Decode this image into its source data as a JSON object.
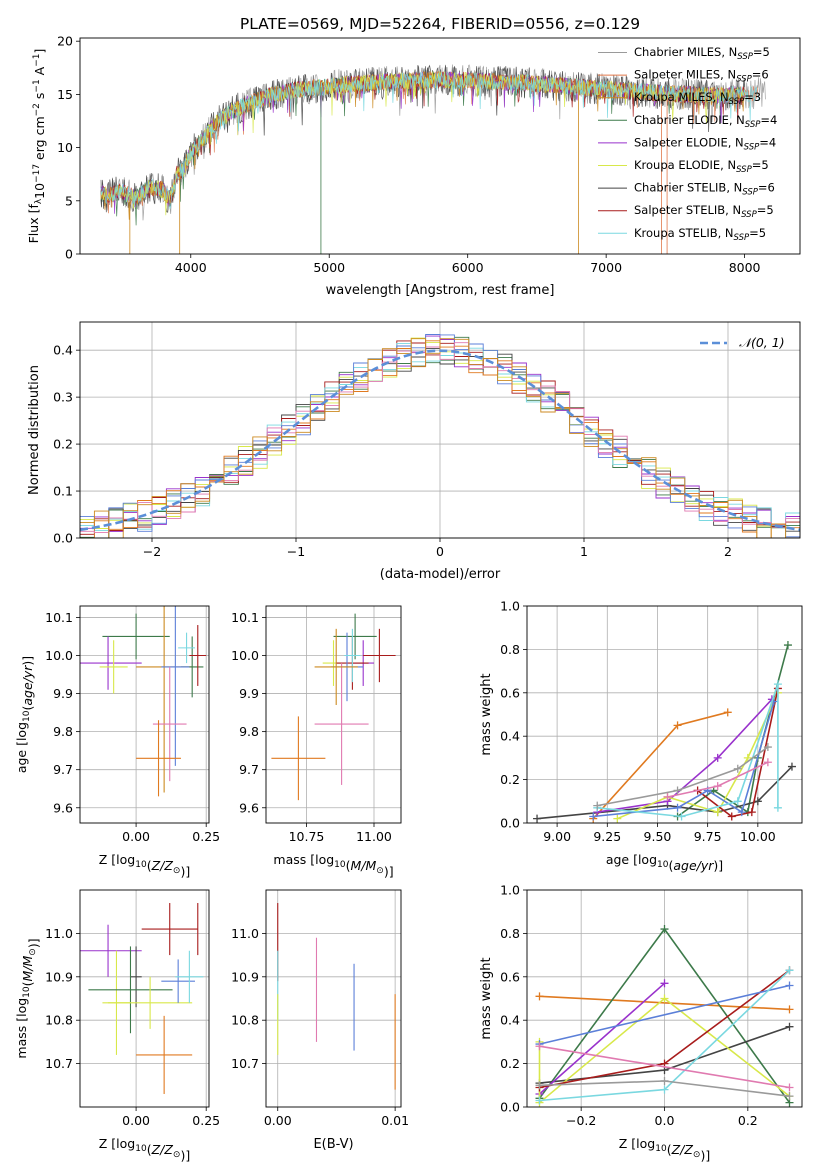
{
  "page": {
    "title": "PLATE=0569, MJD=52264, FIBERID=0556, z=0.129"
  },
  "colors": {
    "Chabrier MILES": "#9a9a9a",
    "Salpeter MILES": "#e0784a",
    "Kroupa MILES": "#cc8a20",
    "Chabrier ELODIE": "#3d7a4a",
    "Salpeter ELODIE": "#9932cc",
    "Kroupa ELODIE": "#d8e84a",
    "Chabrier STELIB": "#444444",
    "Salpeter STELIB": "#a81c1c",
    "Kroupa STELIB": "#7ad8e0",
    "extra_blue": "#5b7fd8",
    "extra_pink": "#e07ab0",
    "extra_orange": "#e07a20"
  },
  "chart_data": [
    {
      "id": "spectrum",
      "type": "line",
      "xlabel": "wavelength [Angstrom, rest frame]",
      "ylabel_parts": [
        "Flux [f",
        "λ",
        "10",
        "−17",
        " erg cm",
        "−2",
        " s",
        "−1",
        " A",
        "−1",
        "]"
      ],
      "xlim": [
        3200,
        8400
      ],
      "ylim": [
        0,
        20.3
      ],
      "xticks": [
        4000,
        5000,
        6000,
        7000,
        8000
      ],
      "yticks": [
        0,
        5,
        10,
        15,
        20
      ],
      "grid": false,
      "legend": "right",
      "shape_x": [
        3350,
        3400,
        3500,
        3600,
        3700,
        3800,
        3850,
        3900,
        3950,
        4000,
        4100,
        4200,
        4300,
        4400,
        4500,
        4600,
        4700,
        4800,
        4900,
        5000,
        5200,
        5400,
        5600,
        5800,
        6000,
        6200,
        6400,
        6600,
        6800,
        7000,
        7200,
        7400,
        7600,
        7800,
        8000,
        8150
      ],
      "shape_y": [
        5.8,
        5.5,
        6.0,
        5.2,
        6.3,
        6.0,
        5.0,
        7.5,
        8.0,
        9.5,
        11.0,
        12.5,
        13.5,
        14.0,
        14.5,
        15.0,
        15.3,
        15.5,
        15.6,
        15.8,
        16.0,
        16.2,
        16.3,
        16.4,
        16.3,
        16.2,
        16.1,
        15.9,
        15.7,
        15.5,
        15.3,
        15.1,
        15.0,
        14.9,
        15.0,
        15.2
      ],
      "series": [
        {
          "label": "Chabrier MILES, N",
          "sub": "SSP",
          "val": "=5"
        },
        {
          "label": "Salpeter MILES, N",
          "sub": "SSP",
          "val": "=6"
        },
        {
          "label": "Kroupa MILES, N",
          "sub": "SSP",
          "val": "=3"
        },
        {
          "label": "Chabrier ELODIE, N",
          "sub": "SSP",
          "val": "=4"
        },
        {
          "label": "Salpeter ELODIE, N",
          "sub": "SSP",
          "val": "=4"
        },
        {
          "label": "Kroupa ELODIE, N",
          "sub": "SSP",
          "val": "=5"
        },
        {
          "label": "Chabrier STELIB, N",
          "sub": "SSP",
          "val": "=6"
        },
        {
          "label": "Salpeter STELIB, N",
          "sub": "SSP",
          "val": "=5"
        },
        {
          "label": "Kroupa STELIB, N",
          "sub": "SSP",
          "val": "=5"
        }
      ]
    },
    {
      "id": "residuals",
      "type": "line",
      "xlabel": "(data-model)/error",
      "ylabel": "Normed distribution",
      "xlim": [
        -2.5,
        2.5
      ],
      "ylim": [
        0,
        0.46
      ],
      "xticks": [
        -2,
        -1,
        0,
        1,
        2
      ],
      "yticks": [
        0.0,
        0.1,
        0.2,
        0.3,
        0.4
      ],
      "grid": true,
      "legend": "top-right",
      "legend_label": "𝒩(0, 1)",
      "bin_width": 0.1
    },
    {
      "id": "ageZ",
      "type": "scatter",
      "xlabel": "Z [log10(Z/Z⊙)]",
      "ylabel": "age  [log10(age/yr)]",
      "xlim": [
        -0.2,
        0.26
      ],
      "ylim": [
        9.56,
        10.13
      ],
      "xticks": [
        0.0,
        0.25
      ],
      "yticks": [
        9.6,
        9.7,
        9.8,
        9.9,
        10.0,
        10.1
      ],
      "grid": true,
      "points": [
        {
          "x": 0.0,
          "y": 10.05,
          "ex": 0.12,
          "ey": 0.06,
          "c": "#3d7a4a"
        },
        {
          "x": -0.1,
          "y": 9.98,
          "ex": 0.12,
          "ey": 0.07,
          "c": "#9932cc"
        },
        {
          "x": -0.08,
          "y": 9.97,
          "ex": 0.05,
          "ey": 0.07,
          "c": "#d8e84a"
        },
        {
          "x": 0.1,
          "y": 9.97,
          "ex": 0.1,
          "ey": 0.33,
          "c": "#cc8a20"
        },
        {
          "x": 0.2,
          "y": 9.97,
          "ex": 0.04,
          "ey": 0.08,
          "c": "#3d7a4a"
        },
        {
          "x": 0.22,
          "y": 10.0,
          "ex": 0.03,
          "ey": 0.08,
          "c": "#a81c1c"
        },
        {
          "x": 0.14,
          "y": 9.97,
          "ex": 0.05,
          "ey": 0.26,
          "c": "#5b7fd8"
        },
        {
          "x": 0.18,
          "y": 10.02,
          "ex": 0.03,
          "ey": 0.04,
          "c": "#7ad8e0"
        },
        {
          "x": 0.12,
          "y": 9.82,
          "ex": 0.06,
          "ey": 0.15,
          "c": "#e07ab0"
        },
        {
          "x": 0.08,
          "y": 9.73,
          "ex": 0.08,
          "ey": 0.1,
          "c": "#e07a20"
        }
      ]
    },
    {
      "id": "ageMass",
      "type": "scatter",
      "xlabel": "mass [log10(M/M⊙)]",
      "xlim": [
        10.6,
        11.1
      ],
      "ylim": [
        9.56,
        10.13
      ],
      "xticks": [
        10.75,
        11.0
      ],
      "yticks": [
        9.6,
        9.7,
        9.8,
        9.9,
        10.0,
        10.1
      ],
      "grid": true,
      "points": [
        {
          "x": 10.93,
          "y": 10.05,
          "ex": 0.08,
          "ey": 0.06,
          "c": "#3d7a4a"
        },
        {
          "x": 10.96,
          "y": 9.98,
          "ex": 0.04,
          "ey": 0.06,
          "c": "#9932cc"
        },
        {
          "x": 10.85,
          "y": 9.98,
          "ex": 0.04,
          "ey": 0.06,
          "c": "#d8e84a"
        },
        {
          "x": 10.72,
          "y": 9.73,
          "ex": 0.1,
          "ey": 0.11,
          "c": "#e07a20"
        },
        {
          "x": 10.92,
          "y": 9.98,
          "ex": 0.06,
          "ey": 0.07,
          "c": "#a81c1c"
        },
        {
          "x": 11.02,
          "y": 10.0,
          "ex": 0.06,
          "ey": 0.07,
          "c": "#a81c1c"
        },
        {
          "x": 10.9,
          "y": 9.97,
          "ex": 0.06,
          "ey": 0.09,
          "c": "#5b7fd8"
        },
        {
          "x": 10.92,
          "y": 10.0,
          "ex": 0.03,
          "ey": 0.07,
          "c": "#7ad8e0"
        },
        {
          "x": 10.88,
          "y": 9.82,
          "ex": 0.1,
          "ey": 0.16,
          "c": "#e07ab0"
        },
        {
          "x": 10.86,
          "y": 9.97,
          "ex": 0.08,
          "ey": 0.1,
          "c": "#cc8a20"
        }
      ]
    },
    {
      "id": "massWeightAge",
      "type": "line",
      "xlabel": "age  [log10(age/yr)]",
      "ylabel": "mass weight",
      "xlim": [
        8.85,
        10.22
      ],
      "ylim": [
        0,
        1.0
      ],
      "xticks": [
        9.0,
        9.25,
        9.5,
        9.75,
        10.0
      ],
      "yticks": [
        0.0,
        0.2,
        0.4,
        0.6,
        0.8,
        1.0
      ],
      "grid": true,
      "lines": [
        {
          "c": "#e07a20",
          "pts": [
            [
              9.18,
              0.02
            ],
            [
              9.6,
              0.45
            ],
            [
              9.85,
              0.51
            ]
          ]
        },
        {
          "c": "#3d7a4a",
          "pts": [
            [
              9.6,
              0.03
            ],
            [
              9.78,
              0.15
            ],
            [
              9.95,
              0.05
            ],
            [
              10.0,
              0.3
            ],
            [
              10.15,
              0.82
            ]
          ]
        },
        {
          "c": "#444444",
          "pts": [
            [
              8.9,
              0.02
            ],
            [
              9.55,
              0.08
            ],
            [
              9.8,
              0.05
            ],
            [
              10.0,
              0.1
            ],
            [
              10.17,
              0.26
            ]
          ]
        },
        {
          "c": "#9932cc",
          "pts": [
            [
              9.2,
              0.05
            ],
            [
              9.55,
              0.1
            ],
            [
              9.8,
              0.3
            ],
            [
              10.07,
              0.57
            ]
          ]
        },
        {
          "c": "#d8e84a",
          "pts": [
            [
              9.3,
              0.02
            ],
            [
              9.55,
              0.12
            ],
            [
              9.8,
              0.05
            ],
            [
              9.95,
              0.3
            ],
            [
              10.1,
              0.6
            ]
          ]
        },
        {
          "c": "#a81c1c",
          "pts": [
            [
              9.7,
              0.15
            ],
            [
              9.87,
              0.03
            ],
            [
              9.97,
              0.05
            ],
            [
              10.1,
              0.62
            ]
          ]
        },
        {
          "c": "#5b7fd8",
          "pts": [
            [
              9.18,
              0.03
            ],
            [
              9.6,
              0.07
            ],
            [
              9.75,
              0.15
            ],
            [
              9.92,
              0.05
            ],
            [
              10.08,
              0.56
            ]
          ]
        },
        {
          "c": "#7ad8e0",
          "pts": [
            [
              9.2,
              0.07
            ],
            [
              9.62,
              0.03
            ],
            [
              9.9,
              0.1
            ],
            [
              10.1,
              0.64
            ],
            [
              10.1,
              0.07
            ]
          ]
        },
        {
          "c": "#e07ab0",
          "pts": [
            [
              9.55,
              0.12
            ],
            [
              9.8,
              0.17
            ],
            [
              10.05,
              0.28
            ]
          ]
        },
        {
          "c": "#9a9a9a",
          "pts": [
            [
              9.2,
              0.08
            ],
            [
              9.6,
              0.15
            ],
            [
              9.9,
              0.25
            ],
            [
              10.05,
              0.35
            ]
          ]
        }
      ]
    },
    {
      "id": "massZ",
      "type": "scatter",
      "xlabel": "Z [log10(Z/Z⊙)]",
      "ylabel": "mass [log10(M/M⊙)]",
      "xlim": [
        -0.2,
        0.26
      ],
      "ylim": [
        10.6,
        11.1
      ],
      "xticks": [
        0.0,
        0.25
      ],
      "yticks": [
        10.7,
        10.8,
        10.9,
        11.0
      ],
      "grid": true,
      "points": [
        {
          "x": 0.12,
          "y": 11.01,
          "ex": 0.1,
          "ey": 0.06,
          "c": "#a81c1c"
        },
        {
          "x": -0.1,
          "y": 10.96,
          "ex": 0.12,
          "ey": 0.06,
          "c": "#9932cc"
        },
        {
          "x": -0.07,
          "y": 10.84,
          "ex": 0.05,
          "ey": 0.12,
          "c": "#d8e84a"
        },
        {
          "x": 0.0,
          "y": 10.9,
          "ex": 0.02,
          "ey": 0.07,
          "c": "#444444"
        },
        {
          "x": -0.02,
          "y": 10.87,
          "ex": 0.15,
          "ey": 0.1,
          "c": "#3d7a4a"
        },
        {
          "x": 0.05,
          "y": 10.84,
          "ex": 0.15,
          "ey": 0.06,
          "c": "#d8e84a"
        },
        {
          "x": 0.15,
          "y": 10.89,
          "ex": 0.06,
          "ey": 0.05,
          "c": "#5b7fd8"
        },
        {
          "x": 0.19,
          "y": 10.9,
          "ex": 0.05,
          "ey": 0.06,
          "c": "#7ad8e0"
        },
        {
          "x": 0.1,
          "y": 10.72,
          "ex": 0.1,
          "ey": 0.09,
          "c": "#e07a20"
        },
        {
          "x": 0.22,
          "y": 11.01,
          "ex": 0.0,
          "ey": 0.06,
          "c": "#a81c1c"
        }
      ]
    },
    {
      "id": "massEBV",
      "type": "scatter",
      "xlabel": "E(B-V)",
      "xlim": [
        -0.001,
        0.0105
      ],
      "ylim": [
        10.6,
        11.1
      ],
      "xticks": [
        0.0,
        0.01
      ],
      "xticklabels": [
        "0.00",
        "0.01"
      ],
      "yticks": [
        10.7,
        10.8,
        10.9,
        11.0
      ],
      "grid": true,
      "points": [
        {
          "x": 0.0,
          "y": 10.98,
          "ex": 0,
          "ey": 0.09,
          "c": "#a81c1c"
        },
        {
          "x": 0.0,
          "y": 10.88,
          "ex": 0,
          "ey": 0.08,
          "c": "#7ad8e0"
        },
        {
          "x": 0.0,
          "y": 10.79,
          "ex": 0,
          "ey": 0.07,
          "c": "#d8e84a"
        },
        {
          "x": 0.0033,
          "y": 10.87,
          "ex": 0,
          "ey": 0.12,
          "c": "#e07ab0"
        },
        {
          "x": 0.0065,
          "y": 10.83,
          "ex": 0,
          "ey": 0.1,
          "c": "#5b7fd8"
        },
        {
          "x": 0.01,
          "y": 10.75,
          "ex": 0,
          "ey": 0.11,
          "c": "#e07a20"
        }
      ]
    },
    {
      "id": "massWeightZ",
      "type": "line",
      "xlabel": "Z [log10(Z/Z⊙)]",
      "ylabel": "mass weight",
      "xlim": [
        -0.33,
        0.33
      ],
      "ylim": [
        0,
        1.0
      ],
      "xticks": [
        -0.2,
        0.0,
        0.2
      ],
      "xticklabels": [
        "−0.2",
        "0.0",
        "0.2"
      ],
      "yticks": [
        0.0,
        0.2,
        0.4,
        0.6,
        0.8,
        1.0
      ],
      "grid": true,
      "lines": [
        {
          "c": "#e07a20",
          "pts": [
            [
              -0.3,
              0.51
            ],
            [
              0.3,
              0.45
            ]
          ]
        },
        {
          "c": "#3d7a4a",
          "pts": [
            [
              -0.3,
              0.04
            ],
            [
              0.0,
              0.82
            ],
            [
              0.3,
              0.02
            ]
          ]
        },
        {
          "c": "#444444",
          "pts": [
            [
              -0.3,
              0.11
            ],
            [
              0.0,
              0.17
            ],
            [
              0.3,
              0.37
            ]
          ]
        },
        {
          "c": "#9932cc",
          "pts": [
            [
              -0.3,
              0.06
            ],
            [
              0.0,
              0.57
            ]
          ]
        },
        {
          "c": "#d8e84a",
          "pts": [
            [
              -0.3,
              0.3
            ],
            [
              -0.3,
              0.02
            ],
            [
              0.0,
              0.5
            ],
            [
              0.3,
              0.05
            ]
          ]
        },
        {
          "c": "#a81c1c",
          "pts": [
            [
              -0.3,
              0.09
            ],
            [
              0.0,
              0.2
            ],
            [
              0.3,
              0.63
            ]
          ]
        },
        {
          "c": "#5b7fd8",
          "pts": [
            [
              -0.3,
              0.29
            ],
            [
              0.3,
              0.56
            ]
          ]
        },
        {
          "c": "#7ad8e0",
          "pts": [
            [
              -0.3,
              0.03
            ],
            [
              0.0,
              0.08
            ],
            [
              0.3,
              0.63
            ]
          ]
        },
        {
          "c": "#e07ab0",
          "pts": [
            [
              -0.3,
              0.28
            ],
            [
              0.3,
              0.09
            ]
          ]
        },
        {
          "c": "#9a9a9a",
          "pts": [
            [
              -0.3,
              0.1
            ],
            [
              0.0,
              0.12
            ],
            [
              0.3,
              0.05
            ]
          ]
        }
      ]
    }
  ]
}
